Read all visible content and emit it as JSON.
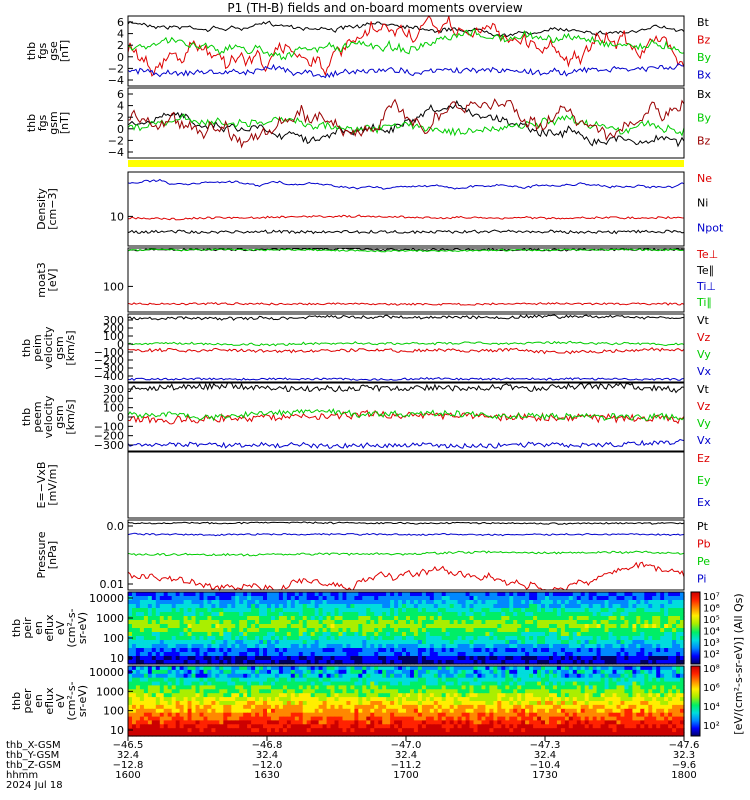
{
  "title": "P1 (TH-B) fields and on-board moments overview",
  "chart_data": {
    "type": "line",
    "panels": [
      {
        "id": "fgs-gse",
        "ylabel": [
          "thb",
          "fgs",
          "gse",
          "[nT]"
        ],
        "ylim": [
          -5,
          7
        ],
        "ticks": [
          "6",
          "4",
          "2",
          "0",
          "−2",
          "−4"
        ],
        "series": [
          {
            "name": "Bt",
            "color": "#000000"
          },
          {
            "name": "Bz",
            "color": "#dd0000"
          },
          {
            "name": "By",
            "color": "#00cc00"
          },
          {
            "name": "Bx",
            "color": "#0000cc"
          }
        ]
      },
      {
        "id": "fgs-gsm",
        "ylabel": [
          "thb",
          "fgs",
          "gsm",
          "[nT]"
        ],
        "ylim": [
          -6,
          7
        ],
        "ticks": [
          "6",
          "4",
          "2",
          "0",
          "−2",
          "−4"
        ],
        "series": [
          {
            "name": "Bx",
            "color": "#000000"
          },
          {
            "name": "By",
            "color": "#00cc00"
          },
          {
            "name": "Bz",
            "color": "#990000"
          }
        ]
      },
      {
        "id": "density",
        "ylabel": [
          "Density",
          "[cm−3]"
        ],
        "ylim": [
          4,
          40
        ],
        "scale": "log",
        "ticks": [
          "10"
        ],
        "series": [
          {
            "name": "Ne",
            "color": "#dd0000"
          },
          {
            "name": "Ni",
            "color": "#000000"
          },
          {
            "name": "Npot",
            "color": "#0000cc"
          }
        ]
      },
      {
        "id": "temperature",
        "ylabel": [
          "moat3",
          "[eV]"
        ],
        "scale": "log",
        "ticks": [
          "100"
        ],
        "series": [
          {
            "name": "Te⊥",
            "color": "#dd0000"
          },
          {
            "name": "Te∥",
            "color": "#000000"
          },
          {
            "name": "Ti⊥",
            "color": "#0000cc"
          },
          {
            "name": "Ti∥",
            "color": "#00cc00"
          }
        ]
      },
      {
        "id": "peim-velocity",
        "ylabel": [
          "thb",
          "peim",
          "velocity",
          "gsm",
          "[km/s]"
        ],
        "ylim": [
          -400,
          330
        ],
        "ticks": [
          "300",
          "200",
          "100",
          "0",
          "−100",
          "−200",
          "−300",
          "−400"
        ],
        "series": [
          {
            "name": "Vt",
            "color": "#000000"
          },
          {
            "name": "Vz",
            "color": "#dd0000"
          },
          {
            "name": "Vy",
            "color": "#00cc00"
          },
          {
            "name": "Vx",
            "color": "#0000cc"
          }
        ]
      },
      {
        "id": "peem-velocity",
        "ylabel": [
          "thb",
          "peem",
          "velocity",
          "gsm",
          "[km/s]"
        ],
        "ylim": [
          -330,
          330
        ],
        "ticks": [
          "300",
          "200",
          "100",
          "0",
          "−100",
          "−200",
          "−300"
        ],
        "series": [
          {
            "name": "Vt",
            "color": "#000000"
          },
          {
            "name": "Vz",
            "color": "#dd0000"
          },
          {
            "name": "Vy",
            "color": "#00cc00"
          },
          {
            "name": "Vx",
            "color": "#0000cc"
          }
        ]
      },
      {
        "id": "efield",
        "ylabel": [
          "E=−VxB",
          "[mV/m]"
        ],
        "series": [
          {
            "name": "Ez",
            "color": "#dd0000"
          },
          {
            "name": "Ey",
            "color": "#00cc00"
          },
          {
            "name": "Ex",
            "color": "#0000cc"
          }
        ]
      },
      {
        "id": "pressure",
        "ylabel": [
          "Pressure",
          "[nPa]"
        ],
        "scale": "log",
        "ticks": [
          "0.0",
          "0.01"
        ],
        "series": [
          {
            "name": "Pt",
            "color": "#000000"
          },
          {
            "name": "Pb",
            "color": "#dd0000"
          },
          {
            "name": "Pe",
            "color": "#00cc00"
          },
          {
            "name": "Pi",
            "color": "#0000cc"
          }
        ]
      },
      {
        "id": "peir-spec",
        "type": "heatmap",
        "ylabel": [
          "thb",
          "peir",
          "en",
          "eflux",
          "eV",
          "(cm²-s-",
          "sr-eV)"
        ],
        "ticks": [
          "10000",
          "1000",
          "100",
          "10"
        ]
      },
      {
        "id": "peer-spec",
        "type": "heatmap",
        "ylabel": [
          "thb",
          "peer",
          "en",
          "eflux",
          "eV",
          "(cm²-s-",
          "sr-eV)"
        ],
        "ticks": [
          "10000",
          "1000",
          "100",
          "10"
        ]
      }
    ],
    "colorbar": {
      "label": "[eV/(cm²-s-sr-eV)] (All Qs)",
      "peir_ticks": [
        "10⁷",
        "10⁶",
        "10⁵",
        "10⁴",
        "10³",
        "10²"
      ],
      "peer_ticks": [
        "10⁸",
        "10⁶",
        "10⁴",
        "10²"
      ]
    },
    "xaxis": {
      "rows": [
        {
          "label": "thb_X-GSM",
          "values": [
            "−46.5",
            "−46.8",
            "−47.0",
            "−47.3",
            "−47.6"
          ]
        },
        {
          "label": "thb_Y-GSM",
          "values": [
            "32.4",
            "32.4",
            "32.4",
            "32.4",
            "32.3"
          ]
        },
        {
          "label": "thb_Z-GSM",
          "values": [
            "−12.8",
            "−12.0",
            "−11.2",
            "−10.4",
            "−9.6"
          ]
        },
        {
          "label": "hhmm",
          "values": [
            "1600",
            "1630",
            "1700",
            "1730",
            "1800"
          ]
        }
      ],
      "date": "2024 Jul 18"
    }
  }
}
